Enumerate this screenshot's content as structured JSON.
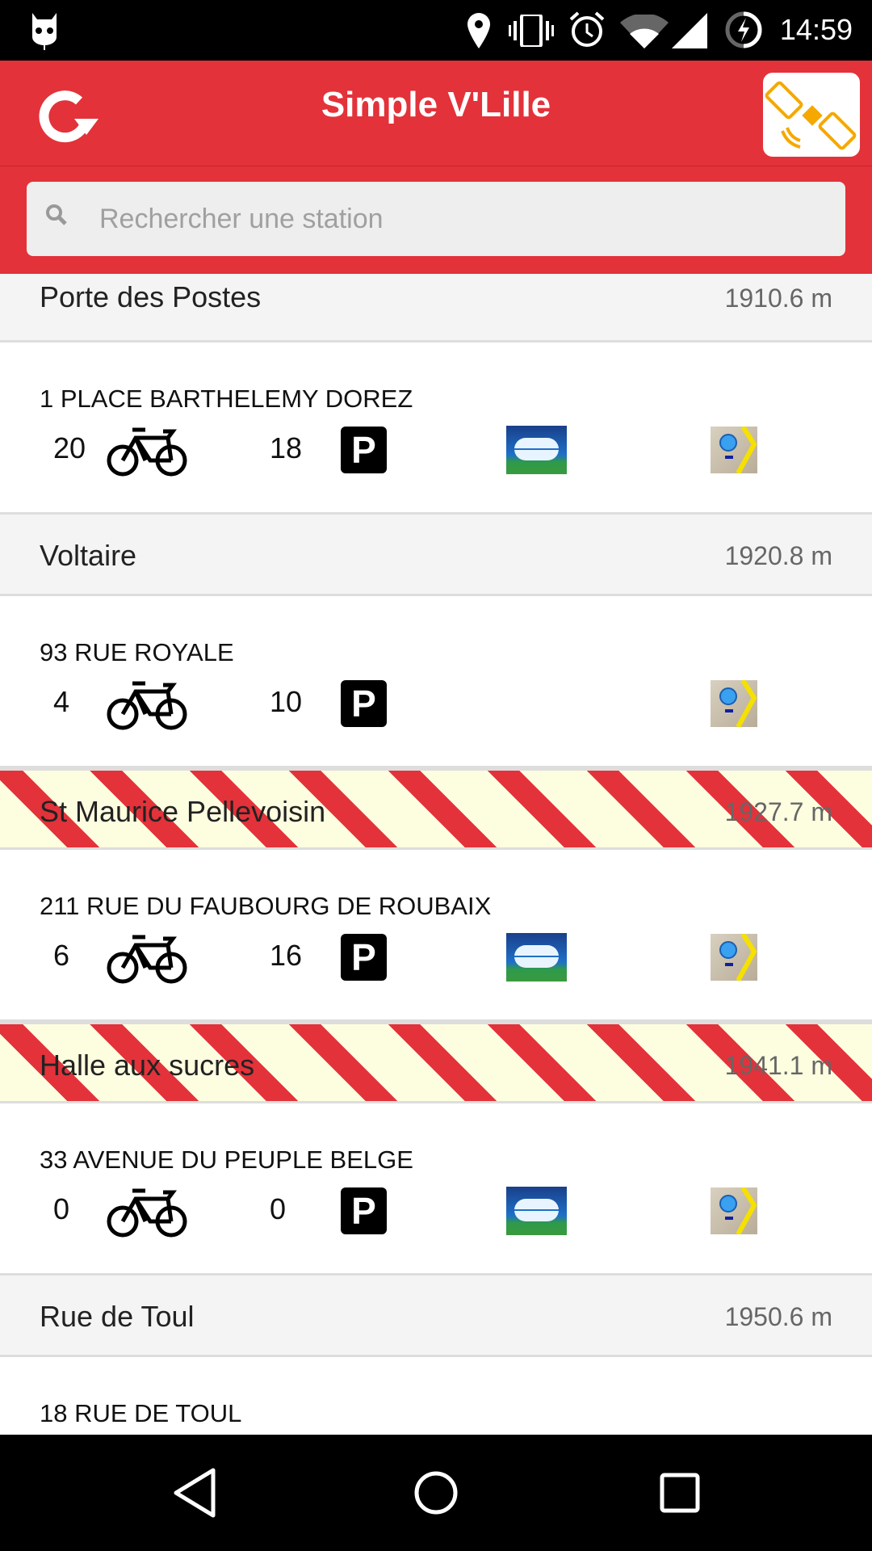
{
  "status_bar": {
    "time": "14:59",
    "icons": [
      "cyanogen-icon",
      "location-icon",
      "vibrate-icon",
      "alarm-icon",
      "wifi-icon",
      "signal-icon",
      "battery-charging-icon"
    ]
  },
  "toolbar": {
    "title": "Simple V'Lille",
    "refresh_icon": "refresh-icon",
    "gps_icon": "satellite-icon"
  },
  "search": {
    "placeholder": "Rechercher une station",
    "value": ""
  },
  "colors": {
    "accent": "#e3323a",
    "warning_stripe": "#e3323a",
    "warning_bg": "#fdfde0"
  },
  "stations": [
    {
      "name": "Porte des Postes",
      "distance": "1910.6 m",
      "address": "1 PLACE BARTHELEMY DOREZ",
      "bikes": "20",
      "slots": "18",
      "cb": true,
      "warning": false
    },
    {
      "name": "Voltaire",
      "distance": "1920.8 m",
      "address": "93 RUE ROYALE",
      "bikes": "4",
      "slots": "10",
      "cb": false,
      "warning": false
    },
    {
      "name": "St Maurice Pellevoisin",
      "distance": "1927.7 m",
      "address": "211 RUE DU FAUBOURG DE ROUBAIX",
      "bikes": "6",
      "slots": "16",
      "cb": true,
      "warning": true
    },
    {
      "name": "Halle aux sucres",
      "distance": "1941.1 m",
      "address": "33 AVENUE DU PEUPLE BELGE",
      "bikes": "0",
      "slots": "0",
      "cb": true,
      "warning": true
    },
    {
      "name": "Rue de Toul",
      "distance": "1950.6 m",
      "address": "18 RUE DE TOUL",
      "bikes": null,
      "slots": null,
      "cb": null,
      "warning": false
    }
  ],
  "parking_label": "P"
}
